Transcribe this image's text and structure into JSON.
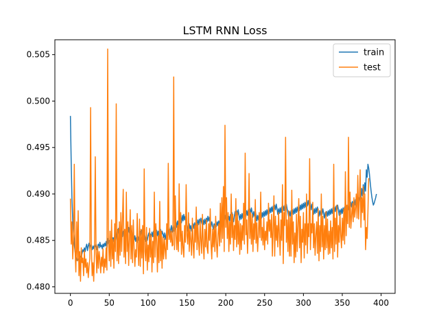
{
  "chart_data": {
    "type": "line",
    "title": "LSTM RNN Loss",
    "xlabel": "",
    "ylabel": "",
    "xlim": [
      -20,
      418
    ],
    "ylim": [
      0.4793,
      0.5066
    ],
    "x_ticks": [
      0,
      50,
      100,
      150,
      200,
      250,
      300,
      350,
      400
    ],
    "y_ticks": [
      0.48,
      0.485,
      0.49,
      0.495,
      0.5,
      0.505
    ],
    "x_tick_labels": [
      "0",
      "50",
      "100",
      "150",
      "200",
      "250",
      "300",
      "350",
      "400"
    ],
    "y_tick_labels": [
      "0.480",
      "0.485",
      "0.490",
      "0.495",
      "0.500",
      "0.505"
    ],
    "grid": false,
    "legend_position": "top-right",
    "series": [
      {
        "name": "train",
        "color": "#1f77b4",
        "x_start": 0,
        "x_step": 1,
        "values": [
          0.4984,
          0.4935,
          0.4895,
          0.4871,
          0.4858,
          0.4846,
          0.4838,
          0.4833,
          0.4829,
          0.4828,
          0.483,
          0.4829,
          0.4831,
          0.4833,
          0.4832,
          0.4836,
          0.484,
          0.4838,
          0.4842,
          0.4838,
          0.4843,
          0.4846,
          0.4839,
          0.4844,
          0.4847,
          0.4841,
          0.4845,
          0.4843,
          0.484,
          0.4844,
          0.4841,
          0.4845,
          0.4843,
          0.4846,
          0.484,
          0.4844,
          0.4846,
          0.4842,
          0.4848,
          0.4843,
          0.4845,
          0.4841,
          0.4846,
          0.4843,
          0.4847,
          0.4844,
          0.4849,
          0.4842,
          0.4852,
          0.4846,
          0.485,
          0.4848,
          0.4844,
          0.4851,
          0.4847,
          0.4853,
          0.4849,
          0.4856,
          0.485,
          0.4855,
          0.4862,
          0.4857,
          0.4863,
          0.4853,
          0.486,
          0.4856,
          0.4862,
          0.4854,
          0.486,
          0.4857,
          0.4861,
          0.4855,
          0.4859,
          0.4863,
          0.4856,
          0.4864,
          0.4858,
          0.4865,
          0.4855,
          0.4861,
          0.4852,
          0.4857,
          0.485,
          0.4855,
          0.4849,
          0.4853,
          0.4848,
          0.4854,
          0.485,
          0.4856,
          0.486,
          0.4854,
          0.4861,
          0.4856,
          0.486,
          0.4851,
          0.4855,
          0.4849,
          0.4854,
          0.485,
          0.4855,
          0.4858,
          0.4852,
          0.4857,
          0.4853,
          0.4859,
          0.4854,
          0.486,
          0.4856,
          0.4862,
          0.4857,
          0.4861,
          0.4855,
          0.486,
          0.4854,
          0.4858,
          0.4862,
          0.4855,
          0.486,
          0.4857,
          0.4853,
          0.4858,
          0.4851,
          0.4856,
          0.486,
          0.4854,
          0.4859,
          0.4864,
          0.4856,
          0.4861,
          0.4866,
          0.4859,
          0.4865,
          0.486,
          0.4868,
          0.4862,
          0.487,
          0.4864,
          0.4871,
          0.4866,
          0.4873,
          0.4867,
          0.4875,
          0.4869,
          0.4877,
          0.4871,
          0.4878,
          0.4872,
          0.4876,
          0.487,
          0.4866,
          0.486,
          0.4864,
          0.4868,
          0.4862,
          0.4866,
          0.486,
          0.4864,
          0.4868,
          0.4863,
          0.4869,
          0.4864,
          0.487,
          0.4866,
          0.4872,
          0.4867,
          0.4873,
          0.4868,
          0.4874,
          0.4869,
          0.4866,
          0.4872,
          0.4867,
          0.4873,
          0.4868,
          0.4874,
          0.487,
          0.4876,
          0.4871,
          0.4875,
          0.4869,
          0.4865,
          0.487,
          0.4866,
          0.4862,
          0.4868,
          0.4864,
          0.4869,
          0.4865,
          0.487,
          0.4866,
          0.4871,
          0.4867,
          0.4873,
          0.4868,
          0.4874,
          0.4869,
          0.4875,
          0.4871,
          0.4877,
          0.4872,
          0.4878,
          0.4873,
          0.487,
          0.4876,
          0.4871,
          0.4878,
          0.4873,
          0.488,
          0.4874,
          0.487,
          0.4876,
          0.4881,
          0.4875,
          0.4882,
          0.4876,
          0.4883,
          0.4877,
          0.4872,
          0.4878,
          0.4873,
          0.4879,
          0.4874,
          0.488,
          0.4875,
          0.4881,
          0.4876,
          0.4882,
          0.4877,
          0.4883,
          0.4878,
          0.4884,
          0.4879,
          0.4885,
          0.488,
          0.4875,
          0.4881,
          0.4876,
          0.4882,
          0.4877,
          0.4871,
          0.4877,
          0.4872,
          0.4878,
          0.4873,
          0.4879,
          0.4874,
          0.488,
          0.4875,
          0.4881,
          0.4876,
          0.4882,
          0.4877,
          0.4883,
          0.4878,
          0.4884,
          0.4879,
          0.4885,
          0.488,
          0.4886,
          0.4881,
          0.4887,
          0.4882,
          0.4888,
          0.4883,
          0.4889,
          0.4884,
          0.4878,
          0.4884,
          0.4879,
          0.4885,
          0.488,
          0.4886,
          0.4881,
          0.4887,
          0.4882,
          0.4888,
          0.4883,
          0.4889,
          0.4884,
          0.488,
          0.4875,
          0.4881,
          0.4876,
          0.4882,
          0.4877,
          0.4883,
          0.4878,
          0.4884,
          0.4879,
          0.4885,
          0.488,
          0.4886,
          0.4881,
          0.4887,
          0.4882,
          0.4888,
          0.4883,
          0.4889,
          0.4884,
          0.489,
          0.4885,
          0.4891,
          0.4886,
          0.4892,
          0.4887,
          0.4893,
          0.4888,
          0.4894,
          0.4889,
          0.4883,
          0.4889,
          0.4884,
          0.4878,
          0.4884,
          0.4879,
          0.4885,
          0.488,
          0.4886,
          0.4881,
          0.4876,
          0.4882,
          0.4877,
          0.4883,
          0.4878,
          0.4884,
          0.4879,
          0.4874,
          0.488,
          0.4875,
          0.4881,
          0.4876,
          0.4882,
          0.4877,
          0.4883,
          0.4878,
          0.4884,
          0.4879,
          0.4885,
          0.488,
          0.4886,
          0.4881,
          0.4887,
          0.4882,
          0.4888,
          0.4883,
          0.4877,
          0.4883,
          0.4878,
          0.4884,
          0.4879,
          0.4885,
          0.488,
          0.4886,
          0.4881,
          0.4887,
          0.4882,
          0.4888,
          0.4883,
          0.4889,
          0.4885,
          0.4891,
          0.4886,
          0.4892,
          0.4887,
          0.4893,
          0.4888,
          0.4894,
          0.4889,
          0.4895,
          0.489,
          0.4896,
          0.4892,
          0.49,
          0.4895,
          0.4906,
          0.4898,
          0.491,
          0.49,
          0.4912,
          0.4903,
          0.4926,
          0.4918,
          0.4932,
          0.4928,
          0.4921,
          0.4912,
          0.4904,
          0.4897,
          0.4892,
          0.4888,
          0.489,
          0.4893,
          0.4896,
          0.49
        ]
      },
      {
        "name": "test",
        "color": "#ff7f0e",
        "x_start": 0,
        "x_step": 1,
        "values": [
          0.4895,
          0.4846,
          0.487,
          0.483,
          0.485,
          0.4932,
          0.484,
          0.4816,
          0.487,
          0.4828,
          0.4882,
          0.4812,
          0.4838,
          0.4806,
          0.4842,
          0.4826,
          0.4831,
          0.4812,
          0.4839,
          0.4821,
          0.483,
          0.4815,
          0.4826,
          0.481,
          0.4822,
          0.483,
          0.4993,
          0.4841,
          0.4812,
          0.4826,
          0.4806,
          0.4836,
          0.494,
          0.4838,
          0.4815,
          0.4844,
          0.482,
          0.4838,
          0.4829,
          0.4815,
          0.4832,
          0.4822,
          0.4841,
          0.4815,
          0.483,
          0.4821,
          0.4842,
          0.4818,
          0.5056,
          0.485,
          0.4828,
          0.486,
          0.4822,
          0.4872,
          0.483,
          0.4851,
          0.482,
          0.4868,
          0.4838,
          0.4997,
          0.4828,
          0.4862,
          0.4825,
          0.487,
          0.4834,
          0.488,
          0.4838,
          0.4872,
          0.4905,
          0.4832,
          0.4862,
          0.4825,
          0.4902,
          0.4838,
          0.487,
          0.4823,
          0.485,
          0.4883,
          0.483,
          0.4866,
          0.4826,
          0.4872,
          0.4842,
          0.4822,
          0.484,
          0.4832,
          0.4879,
          0.4843,
          0.4823,
          0.4873,
          0.4822,
          0.4862,
          0.4831,
          0.4866,
          0.4814,
          0.4927,
          0.4838,
          0.4828,
          0.4864,
          0.4818,
          0.4845,
          0.4827,
          0.4863,
          0.4832,
          0.4856,
          0.4816,
          0.4849,
          0.4826,
          0.4902,
          0.4832,
          0.4868,
          0.485,
          0.4816,
          0.4855,
          0.4826,
          0.4892,
          0.4828,
          0.486,
          0.482,
          0.4854,
          0.483,
          0.4852,
          0.484,
          0.483,
          0.4868,
          0.484,
          0.4933,
          0.4851,
          0.4862,
          0.4848,
          0.486,
          0.4844,
          0.4845,
          0.5026,
          0.484,
          0.4898,
          0.4855,
          0.484,
          0.4866,
          0.4838,
          0.4911,
          0.4849,
          0.488,
          0.4835,
          0.486,
          0.4842,
          0.4832,
          0.4866,
          0.4848,
          0.491,
          0.4855,
          0.4846,
          0.488,
          0.4838,
          0.4862,
          0.485,
          0.4834,
          0.4874,
          0.4846,
          0.4831,
          0.4866,
          0.4848,
          0.4886,
          0.484,
          0.4868,
          0.4847,
          0.4834,
          0.4871,
          0.485,
          0.4836,
          0.4878,
          0.4846,
          0.483,
          0.4862,
          0.4843,
          0.4872,
          0.4842,
          0.4836,
          0.4868,
          0.485,
          0.4884,
          0.4846,
          0.483,
          0.4862,
          0.4843,
          0.4866,
          0.4838,
          0.4876,
          0.4848,
          0.4832,
          0.4856,
          0.4868,
          0.4844,
          0.489,
          0.4848,
          0.4896,
          0.4852,
          0.4908,
          0.4838,
          0.4974,
          0.4864,
          0.4896,
          0.4852,
          0.488,
          0.4838,
          0.487,
          0.4846,
          0.49,
          0.4853,
          0.4878,
          0.4839,
          0.4866,
          0.4851,
          0.4895,
          0.4843,
          0.488,
          0.4846,
          0.4871,
          0.4835,
          0.4868,
          0.484,
          0.4866,
          0.485,
          0.489,
          0.4846,
          0.4944,
          0.4856,
          0.4872,
          0.4836,
          0.4862,
          0.4922,
          0.4852,
          0.488,
          0.4846,
          0.4878,
          0.4838,
          0.4868,
          0.4851,
          0.4894,
          0.4847,
          0.4869,
          0.4838,
          0.4856,
          0.488,
          0.4853,
          0.4902,
          0.485,
          0.4864,
          0.4845,
          0.4874,
          0.484,
          0.486,
          0.485,
          0.487,
          0.4846,
          0.489,
          0.486,
          0.4872,
          0.4853,
          0.4878,
          0.4833,
          0.4862,
          0.4898,
          0.4833,
          0.4876,
          0.485,
          0.4866,
          0.4843,
          0.488,
          0.4857,
          0.4834,
          0.4872,
          0.485,
          0.491,
          0.4825,
          0.488,
          0.4866,
          0.4961,
          0.4848,
          0.4872,
          0.4838,
          0.4882,
          0.4833,
          0.4875,
          0.4833,
          0.4904,
          0.4846,
          0.487,
          0.4826,
          0.4858,
          0.4832,
          0.4878,
          0.4838,
          0.4868,
          0.4895,
          0.4842,
          0.4876,
          0.4826,
          0.4862,
          0.4848,
          0.488,
          0.4831,
          0.4868,
          0.4845,
          0.49,
          0.4836,
          0.4868,
          0.4854,
          0.4938,
          0.484,
          0.4868,
          0.4858,
          0.4891,
          0.4842,
          0.4868,
          0.4834,
          0.4856,
          0.487,
          0.4836,
          0.4884,
          0.4828,
          0.4866,
          0.4838,
          0.49,
          0.4843,
          0.4876,
          0.483,
          0.4866,
          0.484,
          0.4881,
          0.4842,
          0.4873,
          0.4835,
          0.486,
          0.4836,
          0.4871,
          0.4842,
          0.4864,
          0.483,
          0.4932,
          0.4838,
          0.4874,
          0.4846,
          0.4888,
          0.4832,
          0.4866,
          0.4848,
          0.488,
          0.4856,
          0.4842,
          0.4874,
          0.485,
          0.4884,
          0.4846,
          0.4924,
          0.4855,
          0.4888,
          0.4868,
          0.4961,
          0.4864,
          0.4902,
          0.4863,
          0.4876,
          0.489,
          0.487,
          0.4896,
          0.4875,
          0.4884,
          0.49,
          0.4874,
          0.492,
          0.4873,
          0.4893,
          0.4926,
          0.4864,
          0.4896,
          0.488,
          0.4908,
          0.4872,
          0.49,
          0.484,
          0.4864,
          0.4852,
          0.488,
          0.4917
        ]
      }
    ]
  }
}
